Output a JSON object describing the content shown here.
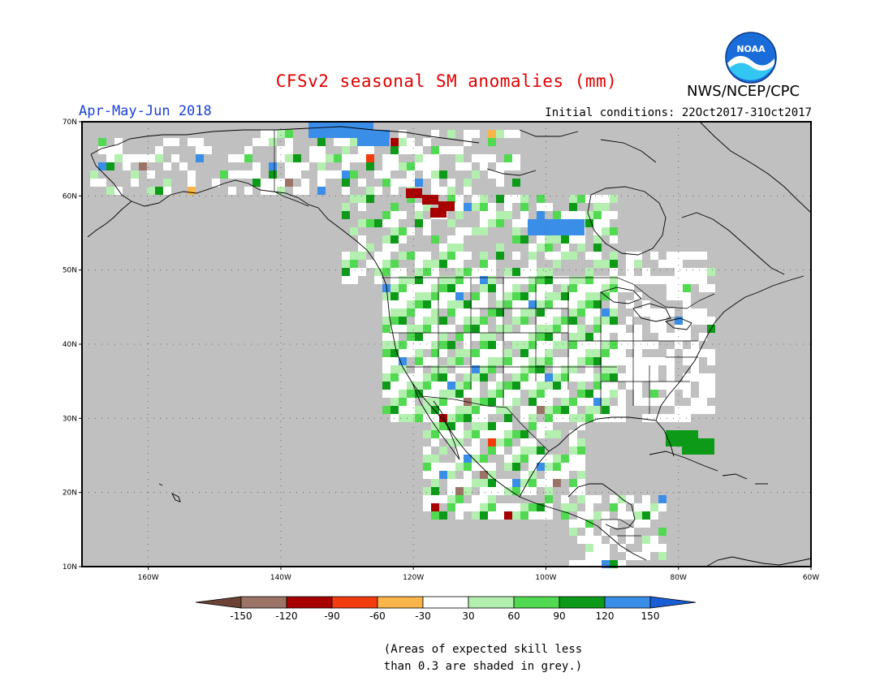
{
  "title": "CFSv2 seasonal SM anomalies (mm)",
  "season": "Apr-May-Jun 2018",
  "agency": "NWS/NCEP/CPC",
  "logo_text": "NOAA",
  "initial_conditions": "Initial conditions: 22Oct2017-31Oct2017",
  "map": {
    "lon_range": [
      -170,
      -60
    ],
    "lat_range": [
      10,
      70
    ],
    "lat_ticks": [
      "70N",
      "60N",
      "50N",
      "40N",
      "30N",
      "20N",
      "10N"
    ],
    "lon_ticks": [
      "160W",
      "140W",
      "120W",
      "100W",
      "80W",
      "60W"
    ],
    "no_skill_color": "#c0c0c0"
  },
  "legend": {
    "labels": [
      "-150",
      "-120",
      "-90",
      "-60",
      "-30",
      "30",
      "60",
      "90",
      "120",
      "150"
    ],
    "colors": [
      "#6b4234",
      "#9c7467",
      "#a80000",
      "#f23b0f",
      "#f9b549",
      "#ffffff",
      "#b3f0b0",
      "#52d952",
      "#0c9a18",
      "#3b8ee8",
      "#1a5ed6"
    ]
  },
  "note": [
    "(Areas of expected skill less",
    "than 0.3 are shaded in grey.)"
  ]
}
